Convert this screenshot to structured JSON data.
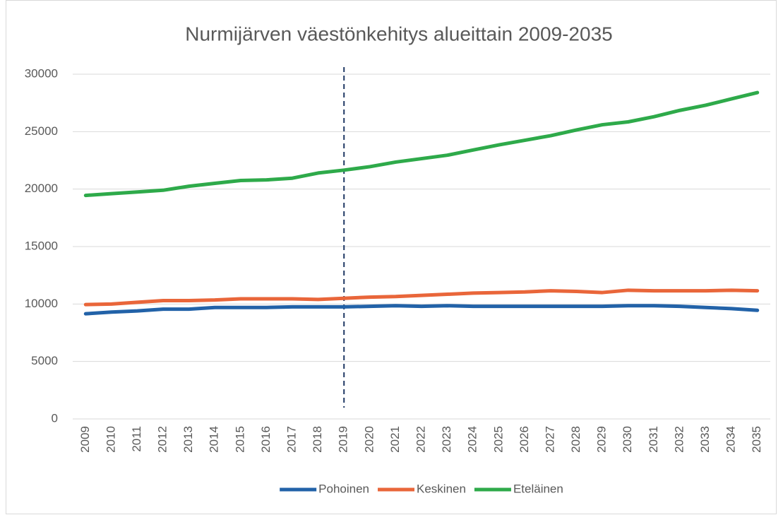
{
  "chart_data": {
    "type": "line",
    "title": "Nurmijärven väestönkehitys alueittain 2009-2035",
    "categories": [
      "2009",
      "2010",
      "2011",
      "2012",
      "2013",
      "2014",
      "2015",
      "2016",
      "2017",
      "2018",
      "2019",
      "2020",
      "2021",
      "2022",
      "2023",
      "2024",
      "2025",
      "2026",
      "2027",
      "2028",
      "2029",
      "2030",
      "2031",
      "2032",
      "2033",
      "2034",
      "2035"
    ],
    "series": [
      {
        "name": "Pohoinen",
        "color": "#2262a8",
        "values": [
          9150,
          9300,
          9400,
          9550,
          9550,
          9700,
          9700,
          9700,
          9750,
          9750,
          9750,
          9800,
          9850,
          9800,
          9850,
          9800,
          9800,
          9800,
          9800,
          9800,
          9800,
          9850,
          9850,
          9800,
          9700,
          9600,
          9450
        ]
      },
      {
        "name": "Keskinen",
        "color": "#e9663a",
        "values": [
          9950,
          10000,
          10150,
          10300,
          10300,
          10350,
          10450,
          10450,
          10450,
          10400,
          10500,
          10600,
          10650,
          10750,
          10850,
          10950,
          11000,
          11050,
          11150,
          11100,
          11000,
          11200,
          11150,
          11150,
          11150,
          11200,
          11150
        ]
      },
      {
        "name": "Eteläinen",
        "color": "#2eaa4a",
        "values": [
          19450,
          19600,
          19750,
          19900,
          20250,
          20500,
          20750,
          20800,
          20950,
          21400,
          21650,
          21950,
          22350,
          22650,
          22950,
          23400,
          23850,
          24250,
          24650,
          25150,
          25600,
          25850,
          26300,
          26850,
          27300,
          27850,
          28400
        ]
      }
    ],
    "ylim": [
      0,
      30000
    ],
    "yticks": [
      0,
      5000,
      10000,
      15000,
      20000,
      25000,
      30000
    ],
    "grid": true,
    "legend": "bottom",
    "reference_line": {
      "x": "2019",
      "style": "dashed",
      "color": "#1f3864"
    }
  }
}
